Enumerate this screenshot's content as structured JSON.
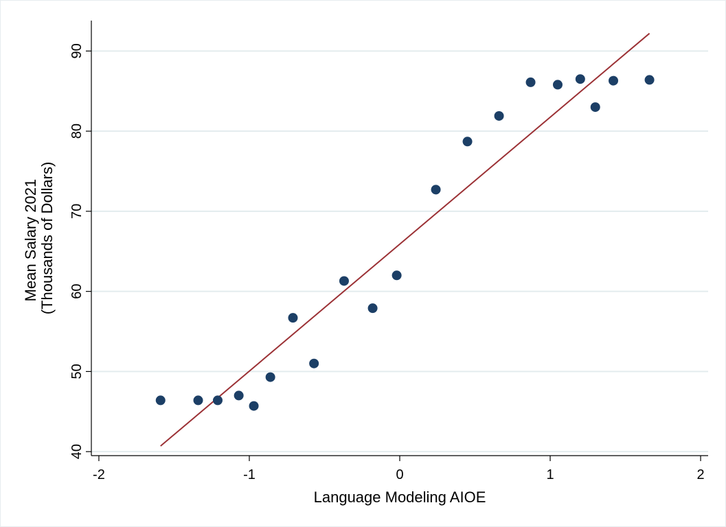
{
  "chart_data": {
    "type": "scatter",
    "title": "",
    "xlabel": "Language Modeling AIOE",
    "ylabel_lines": [
      "Mean Salary 2021",
      "(Thousands of Dollars)"
    ],
    "xlim": [
      -2.05,
      2.05
    ],
    "ylim": [
      39.5,
      93.8
    ],
    "xticks": [
      -2,
      -1,
      0,
      1,
      2
    ],
    "xtick_labels": [
      "-2",
      "-1",
      "0",
      "1",
      "2"
    ],
    "yticks": [
      40,
      50,
      60,
      70,
      80,
      90
    ],
    "ytick_labels": [
      "40",
      "50",
      "60",
      "70",
      "80",
      "90"
    ],
    "grid": "horizontal",
    "legend": "none",
    "points": [
      {
        "x": -1.59,
        "y": 46.4
      },
      {
        "x": -1.34,
        "y": 46.4
      },
      {
        "x": -1.21,
        "y": 46.4
      },
      {
        "x": -1.07,
        "y": 47.0
      },
      {
        "x": -0.97,
        "y": 45.7
      },
      {
        "x": -0.86,
        "y": 49.3
      },
      {
        "x": -0.71,
        "y": 56.7
      },
      {
        "x": -0.57,
        "y": 51.0
      },
      {
        "x": -0.37,
        "y": 61.3
      },
      {
        "x": -0.18,
        "y": 57.9
      },
      {
        "x": -0.02,
        "y": 62.0
      },
      {
        "x": 0.24,
        "y": 72.7
      },
      {
        "x": 0.45,
        "y": 78.7
      },
      {
        "x": 0.66,
        "y": 81.9
      },
      {
        "x": 0.87,
        "y": 86.1
      },
      {
        "x": 1.05,
        "y": 85.8
      },
      {
        "x": 1.2,
        "y": 86.5
      },
      {
        "x": 1.3,
        "y": 83.0
      },
      {
        "x": 1.42,
        "y": 86.3
      },
      {
        "x": 1.66,
        "y": 86.4
      }
    ],
    "fit_line": {
      "x": [
        -1.59,
        1.66
      ],
      "y": [
        40.7,
        92.2
      ]
    },
    "colors": {
      "marker": "#1c3f66",
      "fit_line": "#9c3236",
      "grid": "#e3ecee",
      "axis": "#000000"
    }
  }
}
